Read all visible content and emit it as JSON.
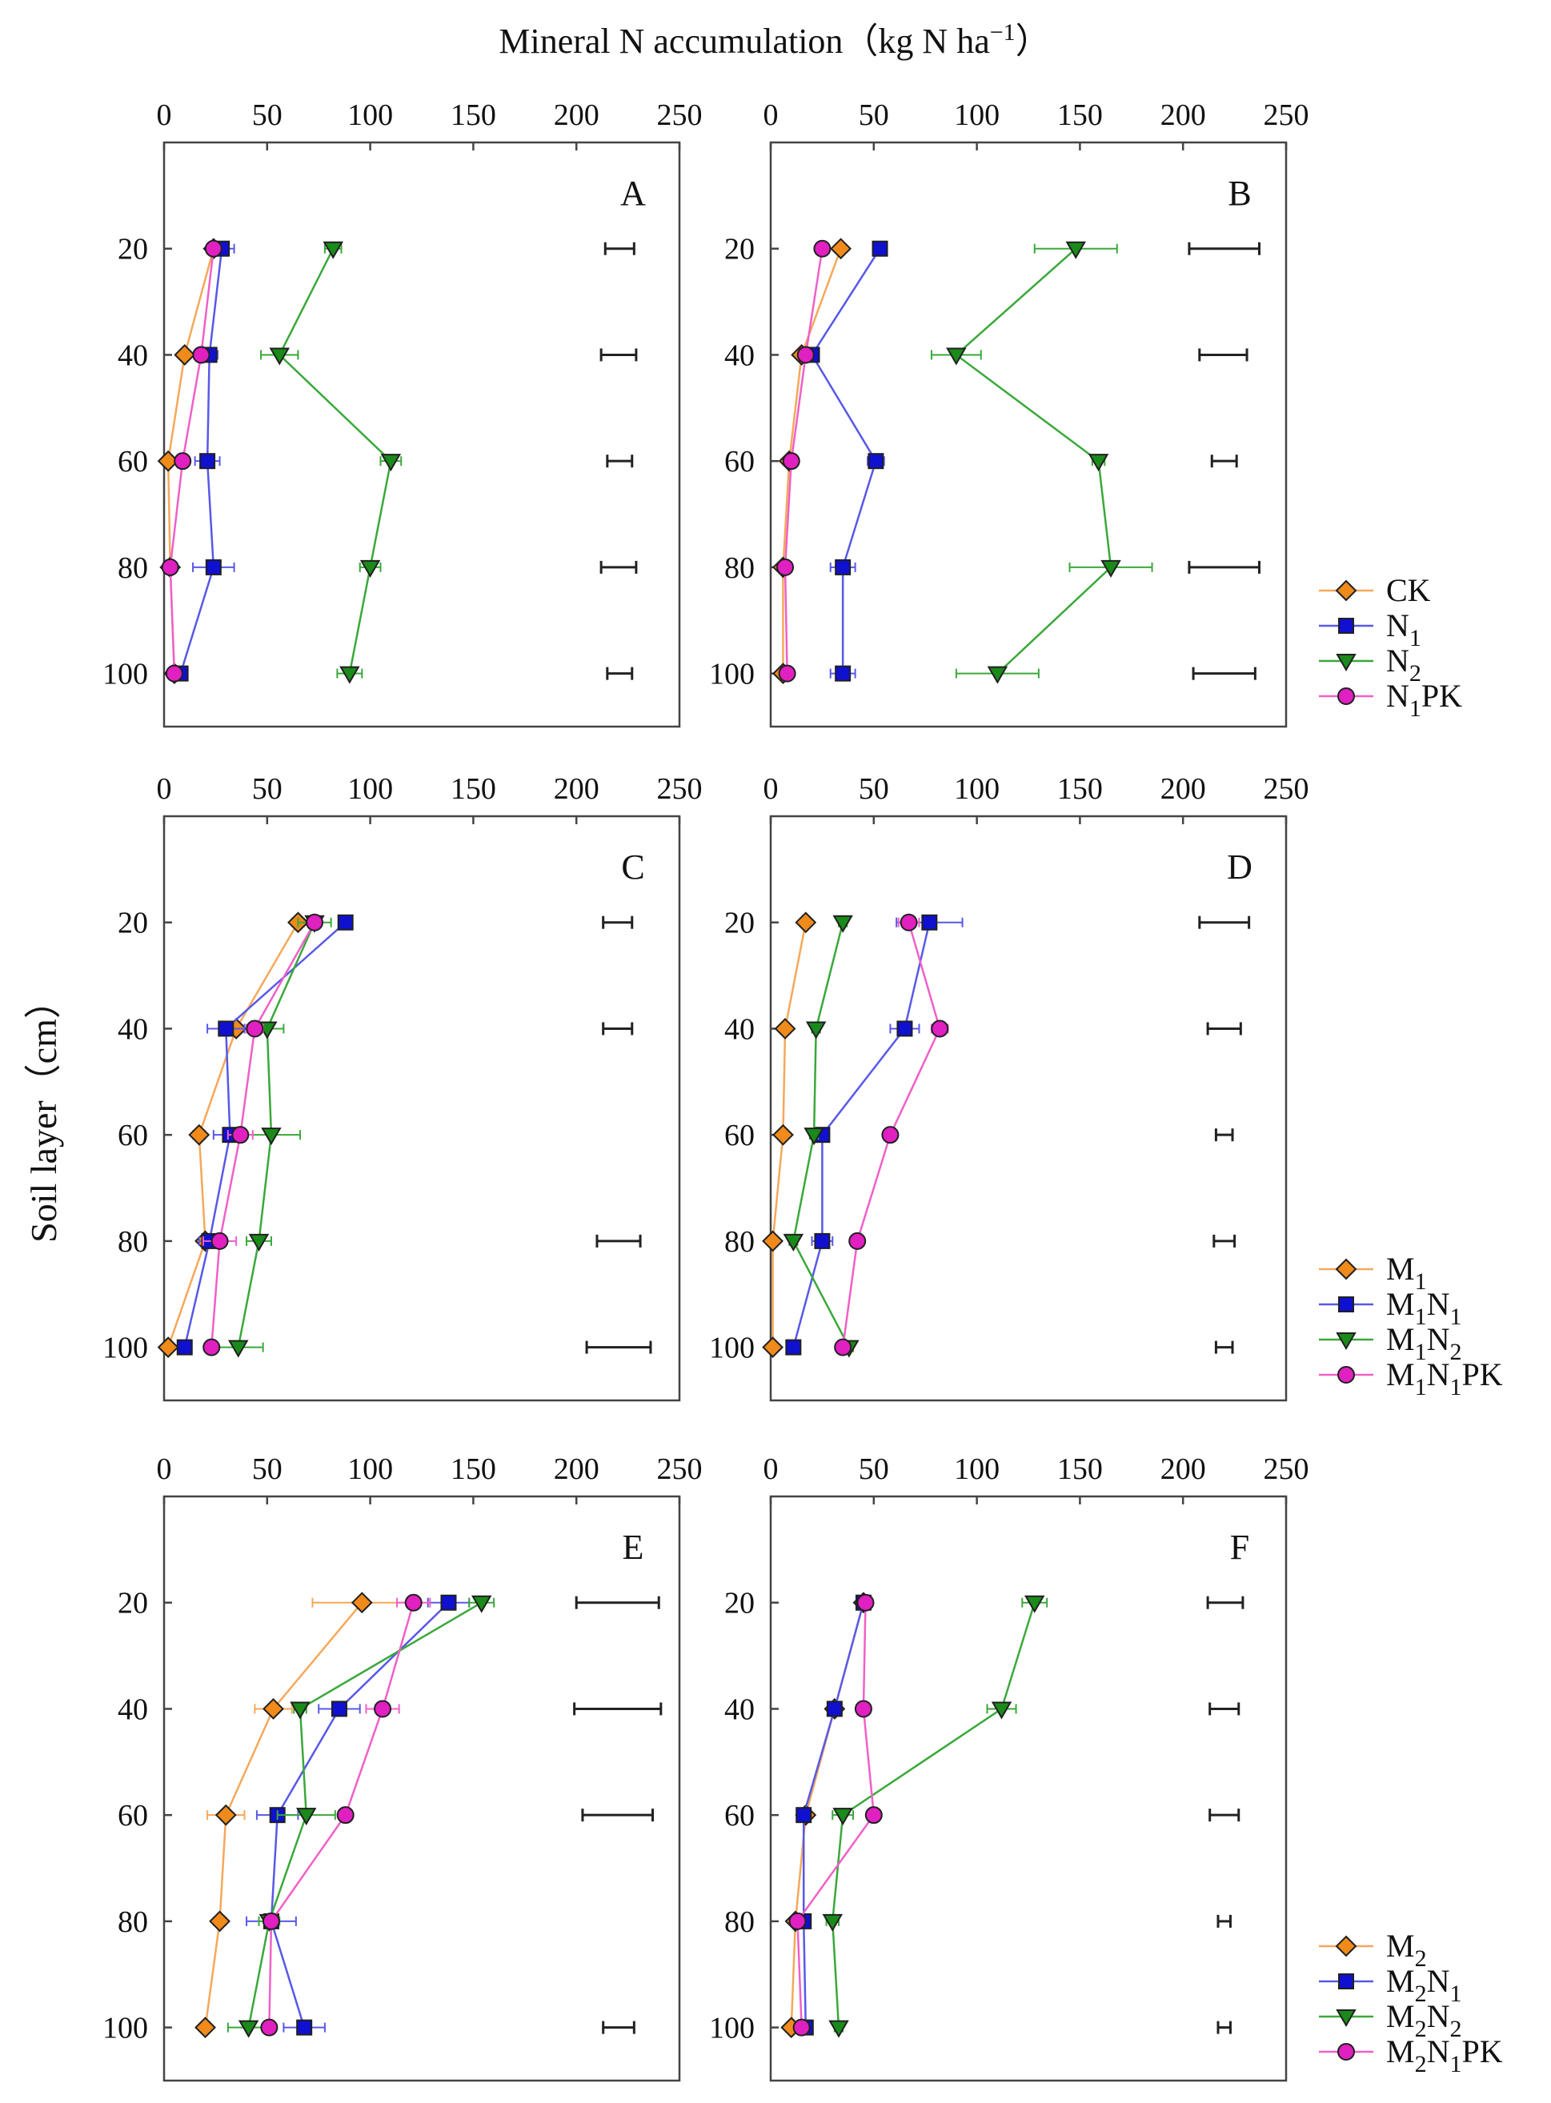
{
  "chart_data": {
    "type": "line",
    "title": "Mineral N accumulation（kg N ha−1）",
    "title_parts": {
      "main": "Mineral N accumulation（kg N ha",
      "sup": "−1",
      "close": "）"
    },
    "ylabel": "Soil layer（cm）",
    "xlim": [
      0,
      250
    ],
    "xticks": [
      "0",
      "50",
      "100",
      "150",
      "200",
      "250"
    ],
    "ylim": [
      0,
      110
    ],
    "yticks": [
      "20",
      "40",
      "60",
      "80",
      "100"
    ],
    "depths": [
      20,
      40,
      60,
      80,
      100
    ],
    "legend_groups": [
      {
        "rows": [
          [
            "CK"
          ],
          [
            "N",
            "1",
            ""
          ],
          [
            "N",
            "2",
            ""
          ],
          [
            "N",
            "1",
            "PK"
          ]
        ]
      },
      {
        "rows": [
          [
            "M",
            "1",
            ""
          ],
          [
            "M",
            "1",
            "N",
            "1",
            ""
          ],
          [
            "M",
            "1",
            "N",
            "2",
            ""
          ],
          [
            "M",
            "1",
            "N",
            "1",
            "PK"
          ]
        ]
      },
      {
        "rows": [
          [
            "M",
            "2",
            ""
          ],
          [
            "M",
            "2",
            "N",
            "1",
            ""
          ],
          [
            "M",
            "2",
            "N",
            "2",
            ""
          ],
          [
            "M",
            "2",
            "N",
            "1",
            "PK"
          ]
        ]
      }
    ],
    "panels": [
      {
        "label": "A",
        "legend_group": 0,
        "series": [
          {
            "name": "CK",
            "color": "#f5a85a",
            "marker": "diamond",
            "fill": "#f08a1a",
            "values": [
              24,
              10,
              2,
              3,
              5
            ],
            "err": [
              2,
              2,
              1,
              1,
              1
            ]
          },
          {
            "name": "N1",
            "color": "#5858e8",
            "marker": "square",
            "fill": "#1010d0",
            "values": [
              28,
              22,
              21,
              24,
              8
            ],
            "err": [
              6,
              4,
              6,
              10,
              2
            ]
          },
          {
            "name": "N2",
            "color": "#3aa83a",
            "marker": "triangle",
            "fill": "#1a8a1a",
            "values": [
              82,
              56,
              110,
              100,
              90
            ],
            "err": [
              4,
              9,
              5,
              5,
              6
            ]
          },
          {
            "name": "N1PK",
            "color": "#f060c8",
            "marker": "circle",
            "fill": "#e020c0",
            "values": [
              24,
              18,
              9,
              3,
              5
            ],
            "err": [
              3,
              2,
              1,
              1,
              1
            ]
          }
        ],
        "lsd": [
          [
            214,
            228
          ],
          [
            212,
            229
          ],
          [
            215,
            227
          ],
          [
            212,
            229
          ],
          [
            215,
            227
          ]
        ]
      },
      {
        "label": "B",
        "legend_group": 0,
        "series": [
          {
            "name": "CK",
            "color": "#f5a85a",
            "marker": "diamond",
            "fill": "#f08a1a",
            "values": [
              34,
              15,
              9,
              6,
              6
            ],
            "err": [
              2,
              2,
              1,
              1,
              1
            ]
          },
          {
            "name": "N1",
            "color": "#5858e8",
            "marker": "square",
            "fill": "#1010d0",
            "values": [
              53,
              20,
              51,
              35,
              35
            ],
            "err": [
              2,
              2,
              4,
              6,
              6
            ]
          },
          {
            "name": "N2",
            "color": "#3aa83a",
            "marker": "triangle",
            "fill": "#1a8a1a",
            "values": [
              148,
              90,
              159,
              165,
              110
            ],
            "err": [
              20,
              12,
              3,
              20,
              20
            ]
          },
          {
            "name": "N1PK",
            "color": "#f060c8",
            "marker": "circle",
            "fill": "#e020c0",
            "values": [
              25,
              17,
              10,
              7,
              8
            ],
            "err": [
              2,
              2,
              1,
              1,
              1
            ]
          }
        ],
        "lsd": [
          [
            203,
            237
          ],
          [
            208,
            231
          ],
          [
            214,
            226
          ],
          [
            203,
            237
          ],
          [
            205,
            235
          ]
        ]
      },
      {
        "label": "C",
        "legend_group": 1,
        "series": [
          {
            "name": "M1",
            "color": "#f5a85a",
            "marker": "diamond",
            "fill": "#f08a1a",
            "values": [
              65,
              35,
              17,
              20,
              2
            ],
            "err": [
              3,
              4,
              3,
              2,
              1
            ]
          },
          {
            "name": "M1N1",
            "color": "#5858e8",
            "marker": "square",
            "fill": "#1010d0",
            "values": [
              88,
              30,
              32,
              22,
              10
            ],
            "err": [
              3,
              9,
              8,
              5,
              2
            ]
          },
          {
            "name": "M1N2",
            "color": "#3aa83a",
            "marker": "triangle",
            "fill": "#1a8a1a",
            "values": [
              73,
              50,
              52,
              46,
              36
            ],
            "err": [
              8,
              8,
              14,
              6,
              12
            ]
          },
          {
            "name": "M1N1PK",
            "color": "#f060c8",
            "marker": "circle",
            "fill": "#e020c0",
            "values": [
              73,
              44,
              37,
              27,
              23
            ],
            "err": [
              3,
              4,
              6,
              8,
              2
            ]
          }
        ],
        "lsd": [
          [
            213,
            227
          ],
          [
            213,
            227
          ],
          null,
          [
            210,
            231
          ],
          [
            205,
            236
          ]
        ]
      },
      {
        "label": "D",
        "legend_group": 1,
        "series": [
          {
            "name": "M1",
            "color": "#f5a85a",
            "marker": "diamond",
            "fill": "#f08a1a",
            "values": [
              17,
              7,
              6,
              1,
              1
            ],
            "err": [
              1,
              1,
              1,
              1,
              1
            ]
          },
          {
            "name": "M1N1",
            "color": "#5858e8",
            "marker": "square",
            "fill": "#1010d0",
            "values": [
              77,
              65,
              25,
              25,
              11
            ],
            "err": [
              16,
              7,
              2,
              5,
              2
            ]
          },
          {
            "name": "M1N2",
            "color": "#3aa83a",
            "marker": "triangle",
            "fill": "#1a8a1a",
            "values": [
              35,
              22,
              21,
              11,
              38
            ],
            "err": [
              2,
              2,
              2,
              2,
              2
            ]
          },
          {
            "name": "M1N1PK",
            "color": "#f060c8",
            "marker": "circle",
            "fill": "#e020c0",
            "values": [
              67,
              82,
              58,
              42,
              35
            ],
            "err": [
              5,
              4,
              2,
              2,
              2
            ]
          }
        ],
        "lsd": [
          [
            208,
            232
          ],
          [
            212,
            228
          ],
          [
            216,
            224
          ],
          [
            215,
            225
          ],
          [
            216,
            224
          ]
        ]
      },
      {
        "label": "E",
        "legend_group": 2,
        "series": [
          {
            "name": "M2",
            "color": "#f5a85a",
            "marker": "diamond",
            "fill": "#f08a1a",
            "values": [
              96,
              53,
              30,
              27,
              20
            ],
            "err": [
              24,
              9,
              9,
              3,
              2
            ]
          },
          {
            "name": "M2N1",
            "color": "#5858e8",
            "marker": "square",
            "fill": "#1010d0",
            "values": [
              138,
              85,
              55,
              52,
              68
            ],
            "err": [
              10,
              10,
              10,
              12,
              10
            ]
          },
          {
            "name": "M2N2",
            "color": "#3aa83a",
            "marker": "triangle",
            "fill": "#1a8a1a",
            "values": [
              154,
              66,
              69,
              51,
              41
            ],
            "err": [
              6,
              3,
              14,
              5,
              10
            ]
          },
          {
            "name": "M2N1PK",
            "color": "#f060c8",
            "marker": "circle",
            "fill": "#e020c0",
            "values": [
              121,
              106,
              88,
              52,
              51
            ],
            "err": [
              8,
              8,
              3,
              3,
              3
            ]
          }
        ],
        "lsd": [
          [
            200,
            240
          ],
          [
            199,
            241
          ],
          [
            203,
            237
          ],
          null,
          [
            213,
            228
          ]
        ]
      },
      {
        "label": "F",
        "legend_group": 2,
        "series": [
          {
            "name": "M2",
            "color": "#f5a85a",
            "marker": "diamond",
            "fill": "#f08a1a",
            "values": [
              45,
              31,
              17,
              12,
              10
            ],
            "err": [
              2,
              2,
              2,
              2,
              2
            ]
          },
          {
            "name": "M2N1",
            "color": "#5858e8",
            "marker": "square",
            "fill": "#1010d0",
            "values": [
              45,
              31,
              16,
              16,
              17
            ],
            "err": [
              2,
              2,
              3,
              3,
              2
            ]
          },
          {
            "name": "M2N2",
            "color": "#3aa83a",
            "marker": "triangle",
            "fill": "#1a8a1a",
            "values": [
              128,
              112,
              35,
              30,
              33
            ],
            "err": [
              6,
              7,
              5,
              3,
              2
            ]
          },
          {
            "name": "M2N1PK",
            "color": "#f060c8",
            "marker": "circle",
            "fill": "#e020c0",
            "values": [
              46,
              45,
              50,
              13,
              15
            ],
            "err": [
              2,
              2,
              2,
              2,
              2
            ]
          }
        ],
        "lsd": [
          [
            212,
            229
          ],
          [
            213,
            227
          ],
          [
            213,
            227
          ],
          [
            217,
            223
          ],
          [
            217,
            223
          ]
        ]
      }
    ]
  }
}
